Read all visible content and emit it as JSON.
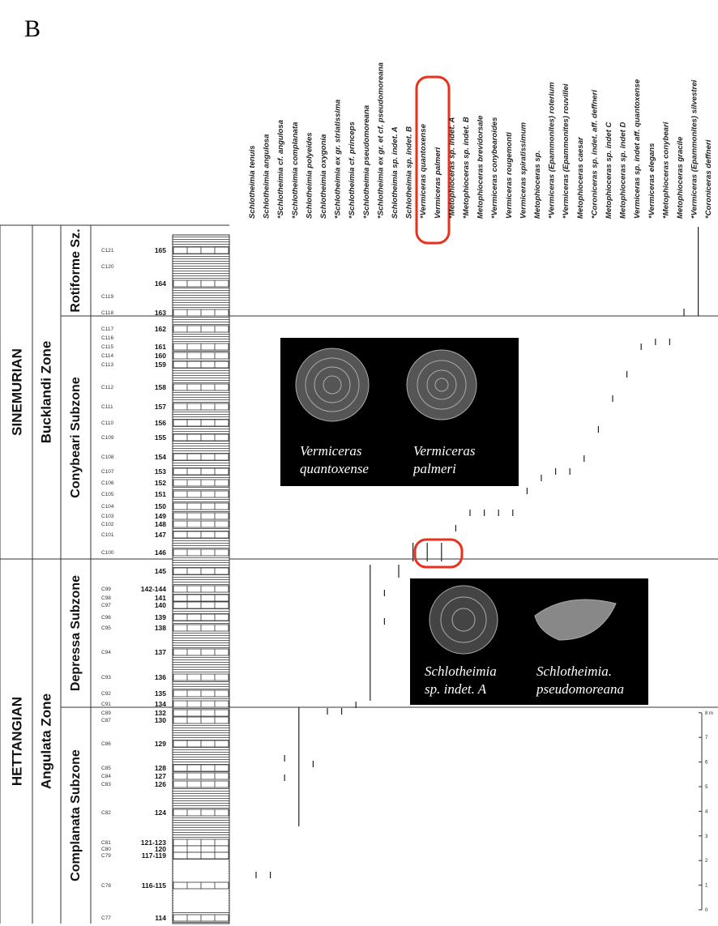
{
  "panel_label": "B",
  "species": [
    "Schlotheimia tenuis",
    "Schlotheimia angulosa",
    "*Schlotheimia cf. angulosa",
    "*Schlotheimia complanata",
    "Schlotheimia polyeides",
    "Schlotheimia oxygonia",
    "*Schlotheimia ex gr. striatissima",
    "*Schlotheimia cf. princeps",
    "*Schlotheimia pseudomoreana",
    "*Schlotheimia ex gr. et cf. pseudomoreana",
    "Schlotheimia sp. indet. A",
    "Schlotheimia sp. indet. B",
    "*Vermiceras quantoxense",
    "Vermiceras palmeri",
    "*Metophioceras sp. indet. A",
    "*Metophioceras sp. indet. B",
    "Metophioceras brevidorsale",
    "*Vermiceras conybearoides",
    "Vermiceras rougemonti",
    "Vermiceras spiratissimum",
    "Metophioceras sp.",
    "*Vermiceras (Epammonites) roterium",
    "*Vermiceras (Epammonites) rouvillei",
    "Metophioceras caesar",
    "*Coroniceras sp. indet. aff. deffneri",
    "Metophioceras sp. indet C",
    "Metophioceras sp. indet D",
    "Vermiceras sp. indet aff. quantoxense",
    "*Vermiceras elegans",
    "*Metophioceras conybeari",
    "Metophioceras gracile",
    "*Vermiceras (Epammonites) silvestrei",
    "*Coroniceras deffneri"
  ],
  "stages": [
    "SINEMURIAN",
    "HETTANGIAN"
  ],
  "zones": [
    "Bucklandi Zone",
    "Angulata Zone"
  ],
  "subzones": [
    "Rotiforme Sz.",
    "Conybeari Subzone",
    "Depressa Subzone",
    "Complanata Subzone"
  ],
  "beds": [
    {
      "code": "C121",
      "bed": "165"
    },
    {
      "code": "C120"
    },
    {
      "bed": "164"
    },
    {
      "code": "C119"
    },
    {
      "code": "C118",
      "bed": "163"
    },
    {
      "code": "C117",
      "bed": "162"
    },
    {
      "code": "C116"
    },
    {
      "code": "C115",
      "bed": "161"
    },
    {
      "code": "C114",
      "bed": "160"
    },
    {
      "code": "C113",
      "bed": "159"
    },
    {
      "code": "C112",
      "bed": "158"
    },
    {
      "code": "C111",
      "bed": "157"
    },
    {
      "code": "C110",
      "bed": "156"
    },
    {
      "code": "C109",
      "bed": "155"
    },
    {
      "code": "C108",
      "bed": "154"
    },
    {
      "code": "C107",
      "bed": "153"
    },
    {
      "code": "C106",
      "bed": "152"
    },
    {
      "code": "C105",
      "bed": "151"
    },
    {
      "code": "C104",
      "bed": "150"
    },
    {
      "code": "C103",
      "bed": "149"
    },
    {
      "code": "C102",
      "bed": "148"
    },
    {
      "code": "C101",
      "bed": "147"
    },
    {
      "code": "C100",
      "bed": "146"
    },
    {
      "bed": "145"
    },
    {
      "code": "C99",
      "bed": "142-144"
    },
    {
      "code": "C98",
      "bed": "141"
    },
    {
      "code": "C97",
      "bed": "140"
    },
    {
      "code": "C96",
      "bed": "139"
    },
    {
      "code": "C95",
      "bed": "138"
    },
    {
      "code": "C94",
      "bed": "137"
    },
    {
      "code": "C93",
      "bed": "136"
    },
    {
      "code": "C92",
      "bed": "135"
    },
    {
      "code": "C91",
      "bed": "134"
    },
    {
      "code": "C89",
      "bed": "132"
    },
    {
      "code": "C87",
      "bed": "130"
    },
    {
      "code": "C86",
      "bed": "129"
    },
    {
      "code": "C85",
      "bed": "128"
    },
    {
      "code": "C84",
      "bed": "127"
    },
    {
      "code": "C83",
      "bed": "126"
    },
    {
      "code": "C82",
      "bed": "124"
    },
    {
      "code": "C81",
      "bed": "121-123"
    },
    {
      "code": "C80",
      "bed": "120"
    },
    {
      "code": "C79",
      "bed": "117-119"
    },
    {
      "code": "C78",
      "bed": "116-115"
    },
    {
      "code": "C77",
      "bed": "114"
    }
  ],
  "photo_captions": [
    [
      "Vermiceras",
      "quantoxense"
    ],
    [
      "Vermiceras",
      "palmeri"
    ],
    [
      "Schlotheimia",
      "sp. indet. A"
    ],
    [
      "Schlotheimia.",
      "pseudomoreana"
    ]
  ],
  "scale_labels": [
    "0",
    "1",
    "2",
    "3",
    "4",
    "5",
    "6",
    "7",
    "8 m"
  ]
}
